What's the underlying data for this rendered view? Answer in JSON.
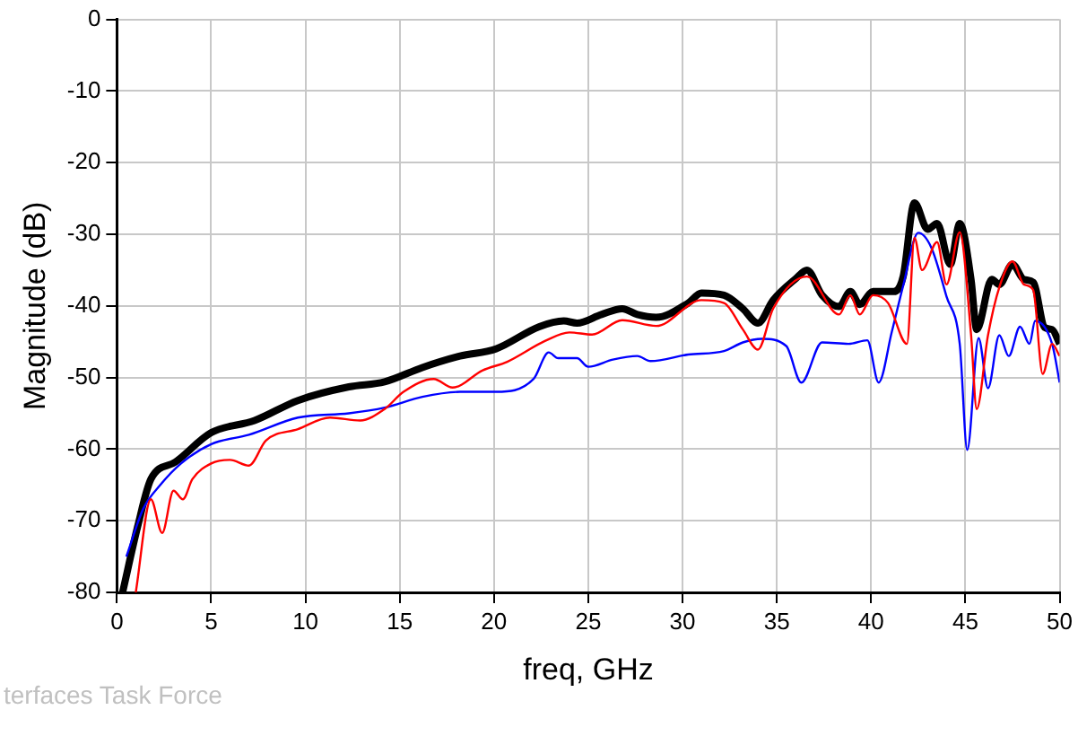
{
  "chart_data": {
    "type": "line",
    "xlabel": "freq, GHz",
    "ylabel": "Magnitude (dB)",
    "xlim": [
      0,
      50
    ],
    "xticks": [
      0,
      5,
      10,
      15,
      20,
      25,
      30,
      35,
      40,
      45,
      50
    ],
    "ylim": [
      -80,
      0
    ],
    "yticks": [
      -80,
      -70,
      -60,
      -50,
      -40,
      -30,
      -20,
      -10,
      0
    ],
    "grid": true,
    "legend": false,
    "marker": "none",
    "line_style": "solid",
    "annotations": [
      "terfaces Task Force"
    ],
    "series": [
      {
        "color": "#ff0000",
        "x": [
          1.0,
          1.8,
          2.4,
          3.0,
          3.5,
          4.0,
          5.0,
          6.0,
          7.0,
          7.9,
          9.6,
          11.3,
          12.9,
          14.2,
          15.2,
          16.8,
          17.8,
          19.4,
          20.7,
          22.7,
          24.0,
          25.2,
          26.8,
          28.6,
          31.0,
          32.2,
          33.2,
          34.0,
          34.8,
          36.6,
          38.3,
          38.9,
          39.4,
          40.1,
          40.9,
          41.9,
          42.3,
          42.7,
          43.5,
          44.0,
          44.7,
          45.3,
          45.6,
          46.2,
          46.8,
          47.5,
          48.1,
          48.6,
          49.1,
          49.6,
          50
        ],
        "values": [
          -80,
          -67,
          -71.7,
          -65.8,
          -67,
          -64.2,
          -62,
          -61.5,
          -62.3,
          -58.8,
          -57.2,
          -55.6,
          -56,
          -54.4,
          -52,
          -50.2,
          -51.4,
          -49,
          -47.8,
          -44.9,
          -43.7,
          -44,
          -42,
          -42.8,
          -39.2,
          -39.6,
          -43.3,
          -46.1,
          -40.4,
          -35.9,
          -41.2,
          -38.5,
          -41.2,
          -38.5,
          -39.6,
          -45.3,
          -30.5,
          -35,
          -31.1,
          -37,
          -29.7,
          -44,
          -54.4,
          -44.1,
          -37.4,
          -33.8,
          -37,
          -37.8,
          -49.5,
          -45.3,
          -47
        ]
      },
      {
        "color": "#0000ff",
        "x": [
          0.5,
          1.4,
          2.3,
          3.4,
          5.0,
          7.0,
          9.6,
          12.3,
          14.2,
          16.2,
          18.2,
          20.1,
          22.1,
          22.9,
          23.4,
          24.4,
          25.0,
          26.3,
          27.6,
          28.3,
          30.3,
          32.2,
          33.2,
          34.2,
          35.5,
          36.3,
          37.4,
          38.8,
          39.8,
          40.4,
          41.1,
          41.7,
          42.5,
          43.2,
          44.0,
          44.7,
          45.1,
          45.7,
          46.2,
          46.8,
          47.3,
          47.9,
          48.4,
          48.7,
          49.6,
          50
        ],
        "values": [
          -75,
          -68.3,
          -65,
          -62,
          -59.3,
          -58,
          -55.6,
          -55,
          -54.2,
          -52.7,
          -52,
          -52,
          -50.2,
          -46.5,
          -47.3,
          -47.3,
          -48.5,
          -47.5,
          -47,
          -47.7,
          -46.8,
          -46.3,
          -45.1,
          -44.6,
          -45.6,
          -50.7,
          -45.1,
          -45.3,
          -44.8,
          -50.7,
          -43.6,
          -37.2,
          -29.8,
          -31.9,
          -38.7,
          -45.3,
          -60.1,
          -44.5,
          -51.5,
          -44.1,
          -47,
          -42.9,
          -45.3,
          -42.1,
          -45.3,
          -50.7
        ]
      },
      {
        "color": "#000000",
        "x": [
          0.3,
          1.1,
          1.8,
          3.1,
          5.0,
          7.3,
          9.6,
          12.3,
          14.2,
          16.2,
          18.2,
          20.1,
          22.4,
          23.7,
          24.4,
          25.7,
          26.8,
          27.6,
          28.6,
          30.3,
          31.0,
          32.2,
          33.2,
          34.0,
          34.8,
          36.0,
          36.6,
          37.4,
          38.3,
          38.9,
          39.4,
          40.1,
          41.2,
          41.7,
          42.3,
          43.0,
          43.5,
          44.2,
          44.7,
          45.3,
          45.6,
          46.4,
          46.8,
          47.5,
          48.1,
          48.6,
          49.2,
          49.6,
          50
        ],
        "values": [
          -80,
          -70.8,
          -64.2,
          -61.8,
          -57.7,
          -56,
          -53.2,
          -51.3,
          -50.6,
          -48.6,
          -47,
          -46,
          -42.9,
          -42.1,
          -42.4,
          -41.2,
          -40.4,
          -41.2,
          -41.6,
          -39.6,
          -38.2,
          -38.5,
          -40.4,
          -42.4,
          -39.2,
          -36.2,
          -35,
          -38.5,
          -40.1,
          -38,
          -39.8,
          -38,
          -38,
          -35.9,
          -25.6,
          -29.3,
          -28.5,
          -34.2,
          -28.5,
          -36.3,
          -43.3,
          -36.3,
          -37,
          -34.2,
          -36.3,
          -36.7,
          -43,
          -43.3,
          -45.3
        ]
      }
    ]
  }
}
